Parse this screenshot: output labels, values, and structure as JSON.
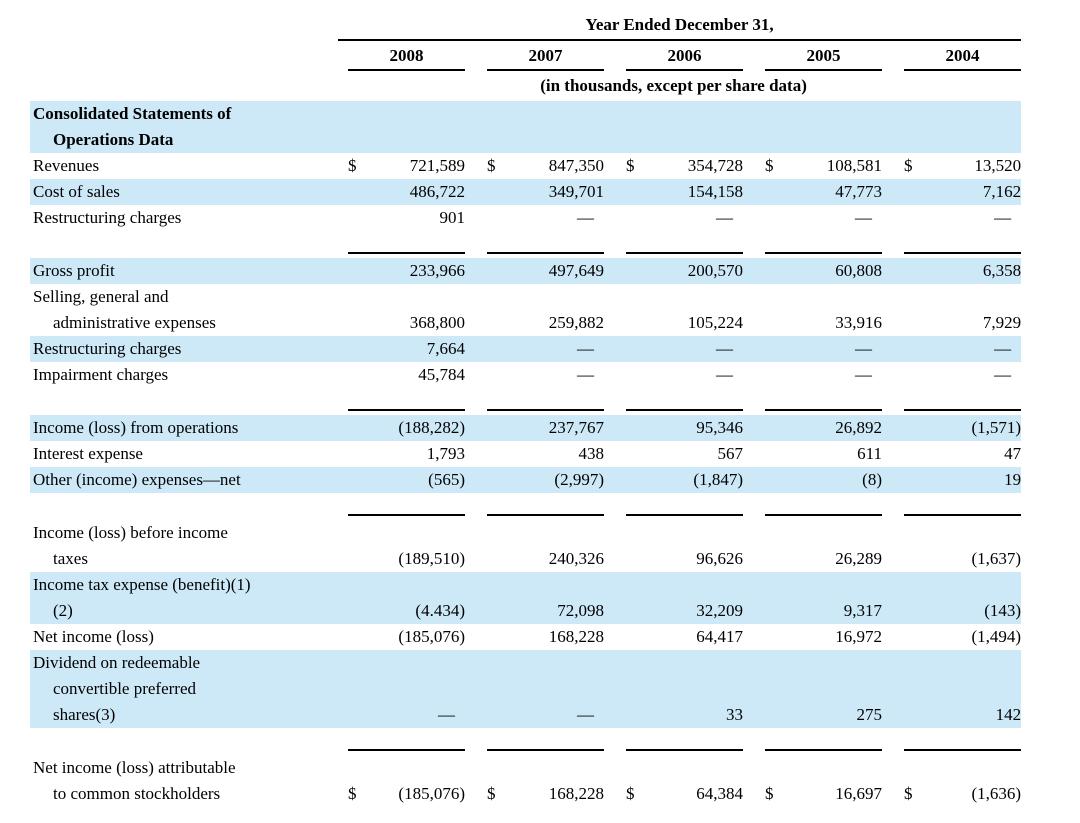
{
  "table": {
    "header": {
      "title": "Year Ended December 31,",
      "subtitle": "(in thousands, except per share data)",
      "columns": [
        "2008",
        "2007",
        "2006",
        "2005",
        "2004"
      ]
    },
    "currency_symbol": "$",
    "dash": "—",
    "colors": {
      "highlight": "#cde9f8",
      "rule": "#000000",
      "text": "#000000",
      "background": "#ffffff"
    },
    "rows": [
      {
        "type": "section",
        "highlight": true,
        "label_lines": [
          "Consolidated Statements of",
          "Operations Data"
        ]
      },
      {
        "type": "data",
        "highlight": false,
        "dollar": true,
        "label_lines": [
          "Revenues"
        ],
        "values": [
          "721,589",
          "847,350",
          "354,728",
          "108,581",
          "13,520"
        ]
      },
      {
        "type": "data",
        "highlight": true,
        "dollar": false,
        "label_lines": [
          "Cost of sales"
        ],
        "values": [
          "486,722",
          "349,701",
          "154,158",
          "47,773",
          "7,162"
        ]
      },
      {
        "type": "data",
        "highlight": false,
        "dollar": false,
        "label_lines": [
          "Restructuring charges"
        ],
        "values": [
          "901",
          "—",
          "—",
          "—",
          "—"
        ]
      },
      {
        "type": "rule"
      },
      {
        "type": "data",
        "highlight": true,
        "dollar": false,
        "label_lines": [
          "Gross profit"
        ],
        "values": [
          "233,966",
          "497,649",
          "200,570",
          "60,808",
          "6,358"
        ]
      },
      {
        "type": "data",
        "highlight": false,
        "dollar": false,
        "label_lines": [
          "Selling, general and",
          "administrative expenses"
        ],
        "values": [
          "368,800",
          "259,882",
          "105,224",
          "33,916",
          "7,929"
        ]
      },
      {
        "type": "data",
        "highlight": true,
        "dollar": false,
        "label_lines": [
          "Restructuring charges"
        ],
        "values": [
          "7,664",
          "—",
          "—",
          "—",
          "—"
        ]
      },
      {
        "type": "data",
        "highlight": false,
        "dollar": false,
        "label_lines": [
          "Impairment charges"
        ],
        "values": [
          "45,784",
          "—",
          "—",
          "—",
          "—"
        ]
      },
      {
        "type": "rule"
      },
      {
        "type": "data",
        "highlight": true,
        "dollar": false,
        "label_lines": [
          "Income (loss) from operations"
        ],
        "values": [
          "(188,282)",
          "237,767",
          "95,346",
          "26,892",
          "(1,571)"
        ]
      },
      {
        "type": "data",
        "highlight": false,
        "dollar": false,
        "label_lines": [
          "Interest expense"
        ],
        "values": [
          "1,793",
          "438",
          "567",
          "611",
          "47"
        ]
      },
      {
        "type": "data",
        "highlight": true,
        "dollar": false,
        "label_lines": [
          "Other (income) expenses—net"
        ],
        "values": [
          "(565)",
          "(2,997)",
          "(1,847)",
          "(8)",
          "19"
        ]
      },
      {
        "type": "rule"
      },
      {
        "type": "data",
        "highlight": false,
        "dollar": false,
        "label_lines": [
          "Income (loss) before income",
          "taxes"
        ],
        "values": [
          "(189,510)",
          "240,326",
          "96,626",
          "26,289",
          "(1,637)"
        ]
      },
      {
        "type": "data",
        "highlight": true,
        "dollar": false,
        "label_lines": [
          "Income tax expense (benefit)(1)",
          "(2)"
        ],
        "values": [
          "(4.434)",
          "72,098",
          "32,209",
          "9,317",
          "(143)"
        ]
      },
      {
        "type": "data",
        "highlight": false,
        "dollar": false,
        "label_lines": [
          "Net income (loss)"
        ],
        "values": [
          "(185,076)",
          "168,228",
          "64,417",
          "16,972",
          "(1,494)"
        ]
      },
      {
        "type": "data",
        "highlight": true,
        "dollar": false,
        "label_lines": [
          "Dividend on redeemable",
          "convertible preferred",
          "shares(3)"
        ],
        "values": [
          "—",
          "—",
          "33",
          "275",
          "142"
        ]
      },
      {
        "type": "rule"
      },
      {
        "type": "data",
        "highlight": false,
        "dollar": true,
        "label_lines": [
          "Net income (loss) attributable",
          "to common stockholders"
        ],
        "values": [
          "(185,076)",
          "168,228",
          "64,384",
          "16,697",
          "(1,636)"
        ]
      }
    ]
  }
}
